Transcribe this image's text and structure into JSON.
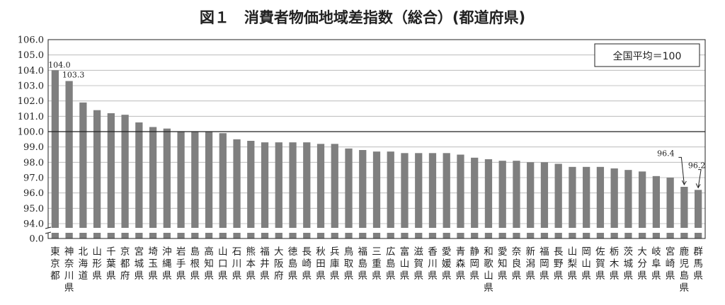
{
  "chart_data": {
    "type": "bar",
    "title": "図１　消費者物価地域差指数（総合）(都道府県)",
    "legend_note": "全国平均＝100",
    "baseline": 100,
    "ylim": [
      94.0,
      106.0
    ],
    "yticks": [
      "0.0",
      "94.0",
      "95.0",
      "96.0",
      "97.0",
      "98.0",
      "99.0",
      "100.0",
      "101.0",
      "102.0",
      "103.0",
      "104.0",
      "105.0",
      "106.0"
    ],
    "axis_break": true,
    "bar_color": "#7f7f7f",
    "categories": [
      "東京都",
      "神奈川県",
      "北海道",
      "山形県",
      "千葉県",
      "京都府",
      "宮城県",
      "埼玉県",
      "沖縄県",
      "岩手県",
      "島根県",
      "高知県",
      "山口県",
      "石川県",
      "熊本県",
      "福井県",
      "大阪府",
      "徳島県",
      "長崎県",
      "秋田県",
      "兵庫県",
      "鳥取県",
      "福島県",
      "三重県",
      "広島県",
      "富山県",
      "滋賀県",
      "香川県",
      "愛媛県",
      "青森県",
      "静岡県",
      "和歌山県",
      "愛知県",
      "奈良県",
      "新潟県",
      "福岡県",
      "長野県",
      "山梨県",
      "岡山県",
      "佐賀県",
      "栃木県",
      "茨城県",
      "大分県",
      "岐阜県",
      "宮崎県",
      "鹿児島県",
      "群馬県"
    ],
    "values": [
      104.0,
      103.3,
      101.9,
      101.4,
      101.2,
      101.1,
      100.6,
      100.3,
      100.2,
      100.0,
      100.0,
      100.0,
      99.9,
      99.5,
      99.4,
      99.3,
      99.3,
      99.3,
      99.3,
      99.2,
      99.2,
      98.9,
      98.8,
      98.7,
      98.7,
      98.6,
      98.6,
      98.6,
      98.6,
      98.5,
      98.3,
      98.2,
      98.1,
      98.1,
      98.0,
      98.0,
      97.9,
      97.7,
      97.7,
      97.7,
      97.6,
      97.5,
      97.4,
      97.1,
      97.0,
      96.4,
      96.2
    ],
    "data_labels": [
      {
        "index": 0,
        "text": "104.0"
      },
      {
        "index": 1,
        "text": "103.3"
      },
      {
        "index": 45,
        "text": "96.4"
      },
      {
        "index": 46,
        "text": "96.2"
      }
    ]
  }
}
